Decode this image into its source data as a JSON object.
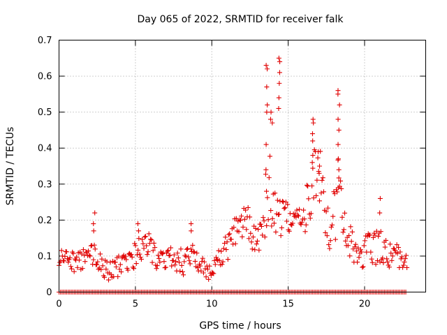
{
  "chart_data": {
    "type": "scatter",
    "title": "Day 065 of 2022, SRMTID for receiver falk",
    "xlabel": "GPS time / hours",
    "ylabel": "SRMTID / TECUs",
    "xlim": [
      0,
      24
    ],
    "ylim": [
      0,
      0.7
    ],
    "x_ticks": [
      0,
      5,
      10,
      15,
      20
    ],
    "x_tick_labels": [
      "0",
      "5",
      "10",
      "15",
      "20"
    ],
    "y_ticks": [
      0,
      0.1,
      0.2,
      0.3,
      0.4,
      0.5,
      0.6,
      0.7
    ],
    "y_tick_labels": [
      "0",
      "0.1",
      "0.2",
      "0.3",
      "0.4",
      "0.5",
      "0.6",
      "0.7"
    ],
    "grid": true,
    "marker": "+",
    "marker_color": "#e00000",
    "series": [
      {
        "name": "SRMTID",
        "color": "#e00000",
        "profile_x": [
          0,
          0.4,
          0.8,
          1.5,
          2.2,
          2.8,
          3.2,
          3.8,
          4.5,
          5.2,
          5.8,
          6.5,
          7.2,
          8.0,
          8.6,
          9.2,
          9.8,
          10.3,
          11.0,
          11.6,
          12.2,
          12.8,
          13.3,
          13.7,
          14.0,
          14.3,
          14.6,
          15.0,
          15.5,
          16.0,
          16.4,
          16.8,
          17.2,
          17.6,
          18.0,
          18.3,
          18.6,
          19.0,
          19.4,
          19.8,
          20.2,
          20.6,
          21.0,
          21.4,
          21.8,
          22.2,
          22.8
        ],
        "profile_y": [
          0.08,
          0.1,
          0.08,
          0.09,
          0.1,
          0.08,
          0.05,
          0.07,
          0.08,
          0.11,
          0.13,
          0.09,
          0.1,
          0.08,
          0.1,
          0.08,
          0.06,
          0.09,
          0.12,
          0.18,
          0.2,
          0.15,
          0.18,
          0.3,
          0.25,
          0.22,
          0.2,
          0.2,
          0.19,
          0.2,
          0.25,
          0.32,
          0.3,
          0.18,
          0.2,
          0.3,
          0.17,
          0.14,
          0.12,
          0.09,
          0.12,
          0.13,
          0.12,
          0.12,
          0.1,
          0.1,
          0.07
        ],
        "profile_spread": [
          0.03,
          0.03,
          0.03,
          0.03,
          0.04,
          0.03,
          0.03,
          0.03,
          0.03,
          0.04,
          0.04,
          0.03,
          0.03,
          0.04,
          0.04,
          0.03,
          0.04,
          0.03,
          0.04,
          0.05,
          0.05,
          0.05,
          0.06,
          0.12,
          0.1,
          0.08,
          0.07,
          0.05,
          0.05,
          0.06,
          0.09,
          0.1,
          0.09,
          0.06,
          0.09,
          0.12,
          0.06,
          0.05,
          0.05,
          0.04,
          0.05,
          0.05,
          0.05,
          0.04,
          0.04,
          0.03,
          0.03
        ],
        "peaks": [
          {
            "x": 2.3,
            "y": [
              0.22,
              0.19,
              0.17
            ]
          },
          {
            "x": 5.2,
            "y": [
              0.19,
              0.17
            ]
          },
          {
            "x": 8.6,
            "y": [
              0.19,
              0.17
            ]
          },
          {
            "x": 13.6,
            "y": [
              0.63,
              0.62,
              0.57,
              0.52,
              0.5,
              0.41,
              0.34,
              0.28
            ]
          },
          {
            "x": 13.9,
            "y": [
              0.5,
              0.48,
              0.47
            ]
          },
          {
            "x": 14.4,
            "y": [
              0.65,
              0.64,
              0.61,
              0.58,
              0.54,
              0.51
            ]
          },
          {
            "x": 16.6,
            "y": [
              0.48,
              0.47,
              0.44,
              0.42,
              0.38,
              0.36
            ]
          },
          {
            "x": 17.0,
            "y": [
              0.39,
              0.35,
              0.33
            ]
          },
          {
            "x": 18.3,
            "y": [
              0.56,
              0.55,
              0.52,
              0.48,
              0.45,
              0.41,
              0.37,
              0.34,
              0.29
            ]
          },
          {
            "x": 21.0,
            "y": [
              0.26,
              0.22
            ]
          }
        ],
        "zero_band": [
          0,
          22.8
        ]
      }
    ]
  }
}
